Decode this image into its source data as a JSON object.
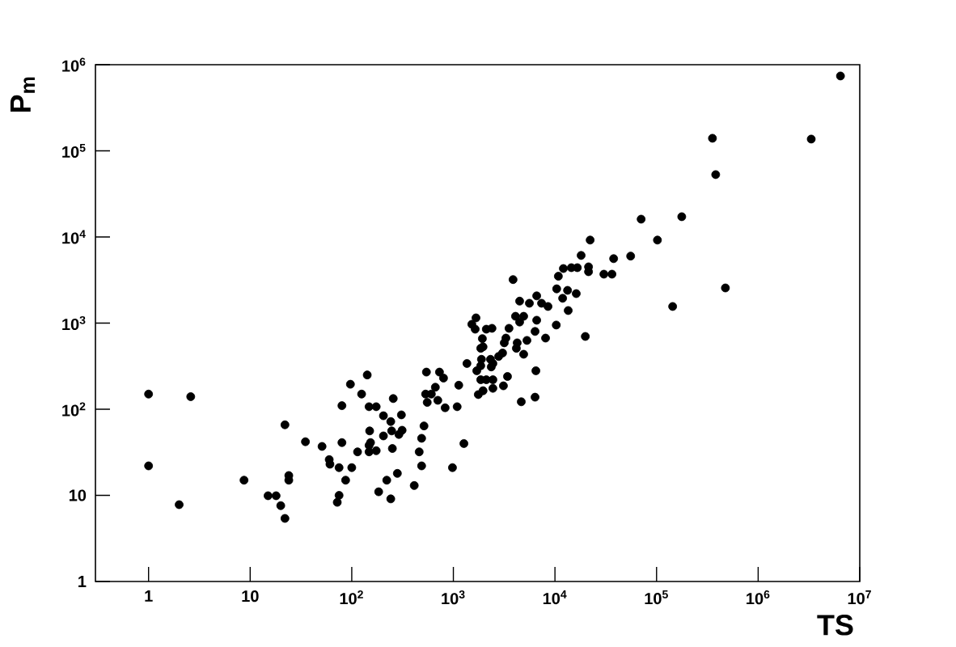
{
  "chart_data": {
    "type": "scatter",
    "xlabel": "TS",
    "ylabel": "P$_{m}$",
    "log": "xy",
    "marker": "circle",
    "grid": false,
    "color": "#000000",
    "xlim": [
      0.3,
      10000000
    ],
    "ylim": [
      1,
      1000000
    ],
    "xticks": [
      1,
      10,
      {
        "value": 100,
        "label": "10$^{2}$"
      },
      {
        "value": 1000,
        "label": "10$^{3}$"
      },
      {
        "value": 10000,
        "label": "10$^{4}$"
      },
      {
        "value": 100000,
        "label": "10$^{5}$"
      },
      {
        "value": 1000000,
        "label": "10$^{6}$"
      },
      {
        "value": 10000000,
        "label": "10$^{7}$"
      }
    ],
    "yticks": [
      1,
      10,
      {
        "value": 100,
        "label": "10$^{2}$"
      },
      {
        "value": 1000,
        "label": "10$^{3}$"
      },
      {
        "value": 10000,
        "label": "10$^{4}$"
      },
      {
        "value": 100000,
        "label": "10$^{5}$"
      },
      {
        "value": 1000000,
        "label": "10$^{6}$"
      }
    ],
    "x": [
      1,
      1,
      2,
      2.6,
      8.7,
      15,
      18,
      20,
      22,
      22,
      24,
      24,
      35,
      51,
      60,
      61,
      75,
      87,
      72,
      75,
      80,
      80,
      97,
      100,
      114,
      125,
      142,
      148,
      174,
      256,
      205,
      308,
      242,
      150,
      247,
      313,
      291,
      205,
      153,
      148,
      148,
      174,
      251,
      514,
      487,
      461,
      487,
      281,
      221,
      412,
      184,
      242,
      730,
      800,
      665,
      533,
      607,
      553,
      703,
      830,
      1090,
      1270,
      980,
      543,
      1130,
      1360,
      1520,
      1640,
      1670,
      1700,
      1760,
      1860,
      1860,
      1860,
      1890,
      1930,
      1960,
      1960,
      2110,
      2110,
      2320,
      2360,
      2400,
      2450,
      2450,
      2450,
      2790,
      3050,
      3110,
      3170,
      3290,
      3410,
      3530,
      3870,
      4090,
      4170,
      4250,
      4490,
      4490,
      4660,
      4920,
      4920,
      5300,
      5600,
      6370,
      6370,
      6490,
      6610,
      6610,
      7380,
      8080,
      8540,
      10300,
      10400,
      10800,
      11900,
      12100,
      13300,
      13500,
      14500,
      16200,
      16600,
      18100,
      19900,
      21400,
      21400,
      22200,
      30300,
      36400,
      37800,
      55600,
      70500,
      102000,
      144000,
      177000,
      355000,
      382000,
      476000,
      3330000,
      6460000
    ],
    "values": [
      150,
      22,
      7.8,
      140,
      15,
      9.9,
      9.9,
      7.6,
      5.4,
      66,
      17,
      15,
      42,
      37,
      26,
      23,
      21,
      15,
      8.3,
      10,
      110,
      41,
      195,
      21,
      32,
      150,
      250,
      107,
      107,
      133,
      84,
      86,
      72,
      56,
      56,
      57,
      51,
      49,
      41,
      38,
      32,
      33,
      35,
      64,
      46,
      32,
      22,
      18,
      15,
      13,
      11,
      9.1,
      270,
      230,
      180,
      150,
      150,
      120,
      127,
      104,
      107,
      40,
      21,
      270,
      190,
      340,
      970,
      850,
      1150,
      280,
      148,
      510,
      320,
      220,
      380,
      660,
      530,
      164,
      850,
      220,
      380,
      310,
      870,
      340,
      220,
      175,
      410,
      450,
      187,
      590,
      670,
      240,
      870,
      3200,
      1200,
      510,
      590,
      1800,
      1030,
      122,
      1200,
      435,
      630,
      1700,
      800,
      138,
      280,
      2070,
      1080,
      1700,
      670,
      1560,
      950,
      2500,
      3500,
      1940,
      4300,
      2400,
      1400,
      4400,
      2200,
      4400,
      6100,
      700,
      4500,
      3950,
      9200,
      3700,
      3700,
      5600,
      6000,
      16100,
      9200,
      1560,
      17200,
      140000,
      53000,
      2560,
      137000,
      740000
    ]
  }
}
